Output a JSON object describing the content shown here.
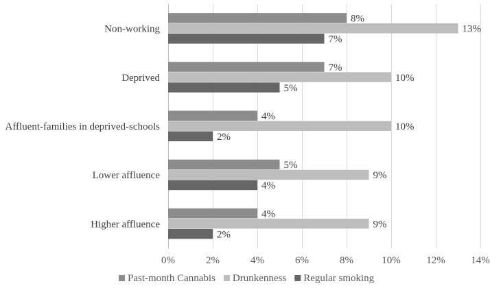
{
  "chart_data": {
    "type": "bar",
    "orientation": "horizontal",
    "categories": [
      "Non-working",
      "Deprived",
      "Affluent-families in deprived-schools",
      "Lower affluence",
      "Higher affluence"
    ],
    "series": [
      {
        "name": "Past-month Cannabis",
        "color": "#8c8c8c",
        "values": [
          8,
          7,
          4,
          5,
          4
        ],
        "labels": [
          "8%",
          "7%",
          "4%",
          "5%",
          "4%"
        ]
      },
      {
        "name": "Drunkenness",
        "color": "#bdbdbd",
        "values": [
          13,
          10,
          10,
          9,
          9
        ],
        "labels": [
          "13%",
          "10%",
          "10%",
          "9%",
          "9%"
        ]
      },
      {
        "name": "Regular smoking",
        "color": "#666666",
        "values": [
          7,
          5,
          2,
          4,
          2
        ],
        "labels": [
          "7%",
          "5%",
          "2%",
          "4%",
          "2%"
        ]
      }
    ],
    "xlim": [
      0,
      14
    ],
    "xticks": [
      0,
      2,
      4,
      6,
      8,
      10,
      12,
      14
    ],
    "xtick_labels": [
      "0%",
      "2%",
      "4%",
      "6%",
      "8%",
      "10%",
      "12%",
      "14%"
    ],
    "grid": true,
    "legend_position": "bottom"
  }
}
